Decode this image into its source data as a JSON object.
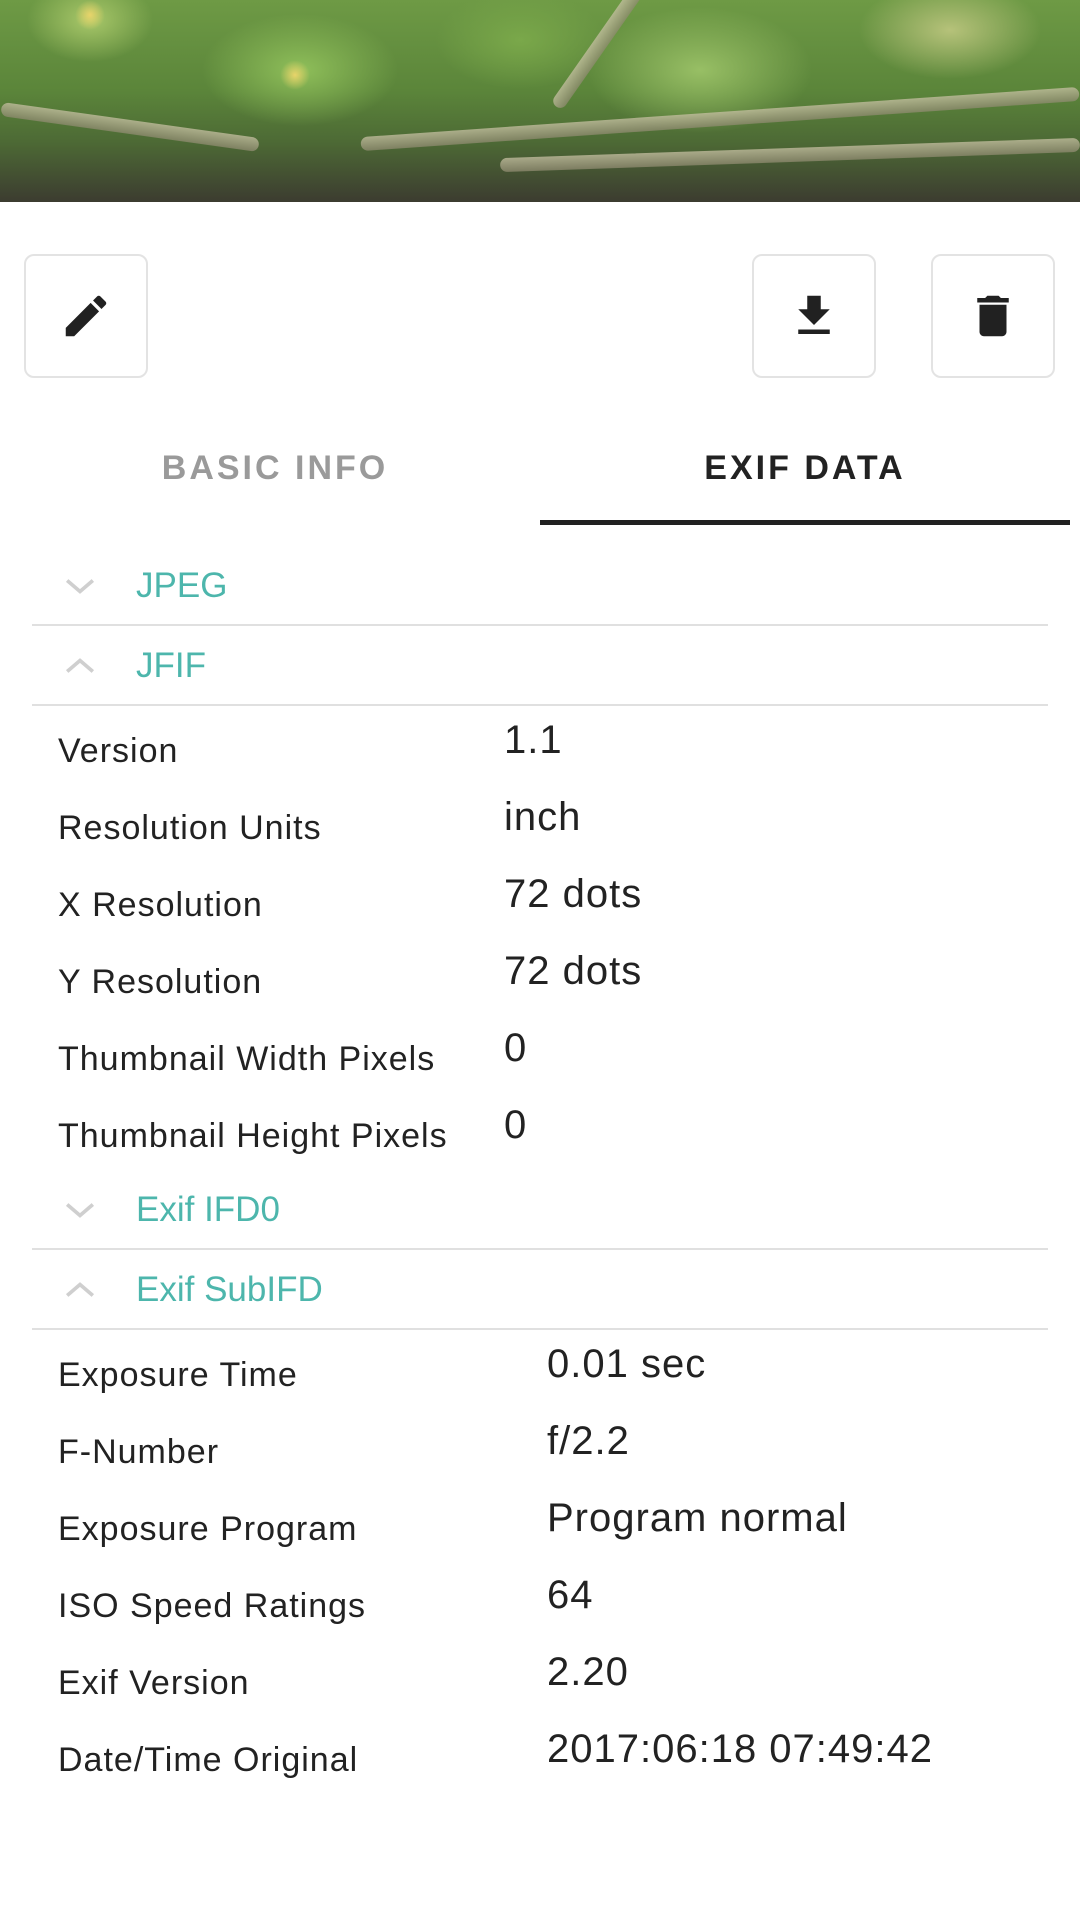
{
  "toolbar": {
    "edit_icon": "pencil-icon",
    "download_icon": "download-icon",
    "delete_icon": "trash-icon"
  },
  "tabs": [
    {
      "label": "BASIC INFO",
      "active": false
    },
    {
      "label": "EXIF DATA",
      "active": true
    }
  ],
  "colors": {
    "accent": "#4db6ac",
    "tab_indicator": "#212121",
    "divider": "#e0e0e0"
  },
  "sections": {
    "jpeg": {
      "title": "JPEG",
      "expanded": false
    },
    "jfif": {
      "title": "JFIF",
      "expanded": true,
      "rows": [
        {
          "key": "Version",
          "value": "1.1"
        },
        {
          "key": "Resolution Units",
          "value": "inch"
        },
        {
          "key": "X Resolution",
          "value": "72 dots"
        },
        {
          "key": "Y Resolution",
          "value": "72 dots"
        },
        {
          "key": "Thumbnail Width Pixels",
          "value": "0"
        },
        {
          "key": "Thumbnail Height Pixels",
          "value": "0"
        }
      ]
    },
    "ifd0": {
      "title": "Exif IFD0",
      "expanded": false
    },
    "subifd": {
      "title": "Exif SubIFD",
      "expanded": true,
      "rows": [
        {
          "key": "Exposure Time",
          "value": "0.01 sec"
        },
        {
          "key": "F-Number",
          "value": "f/2.2"
        },
        {
          "key": "Exposure Program",
          "value": "Program normal"
        },
        {
          "key": "ISO Speed Ratings",
          "value": "64"
        },
        {
          "key": "Exif Version",
          "value": "2.20"
        },
        {
          "key": "Date/Time Original",
          "value": "2017:06:18 07:49:42"
        }
      ]
    }
  }
}
